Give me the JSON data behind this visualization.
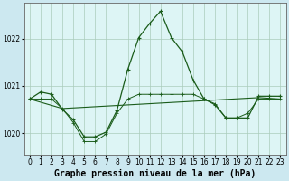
{
  "bg_color": "#cce8f0",
  "plot_bg_color": "#ddf5f5",
  "grid_color": "#aaccbb",
  "line_color": "#1a5c1a",
  "xlabel": "Graphe pression niveau de la mer (hPa)",
  "xlabel_fontsize": 7,
  "tick_fontsize": 5.5,
  "xlim": [
    -0.5,
    23.5
  ],
  "ylim": [
    1019.55,
    1022.75
  ],
  "yticks": [
    1020,
    1021,
    1022
  ],
  "xticks": [
    0,
    1,
    2,
    3,
    4,
    5,
    6,
    7,
    8,
    9,
    10,
    11,
    12,
    13,
    14,
    15,
    16,
    17,
    18,
    19,
    20,
    21,
    22,
    23
  ],
  "series1_x": [
    0,
    1,
    2,
    3,
    4,
    5,
    6,
    7,
    8,
    9,
    10,
    11,
    12,
    13,
    14,
    15,
    16,
    17,
    18,
    19,
    20,
    21,
    22,
    23
  ],
  "series1_y": [
    1020.72,
    1020.87,
    1020.82,
    1020.5,
    1020.28,
    1019.92,
    1019.92,
    1020.02,
    1020.48,
    1021.35,
    1022.02,
    1022.32,
    1022.58,
    1022.02,
    1021.72,
    1021.12,
    1020.72,
    1020.6,
    1020.32,
    1020.32,
    1020.32,
    1020.78,
    1020.78,
    1020.78
  ],
  "series2_x": [
    0,
    1,
    2,
    3,
    4,
    5,
    6,
    7,
    8,
    9,
    10,
    11,
    12,
    13,
    14,
    15,
    16,
    17,
    18,
    19,
    20,
    21,
    22,
    23
  ],
  "series2_y": [
    1020.72,
    1020.72,
    1020.72,
    1020.52,
    1020.22,
    1019.82,
    1019.82,
    1019.98,
    1020.42,
    1020.72,
    1020.82,
    1020.82,
    1020.82,
    1020.82,
    1020.82,
    1020.82,
    1020.72,
    1020.62,
    1020.32,
    1020.32,
    1020.42,
    1020.72,
    1020.72,
    1020.72
  ],
  "series3_x": [
    0,
    3,
    21,
    23
  ],
  "series3_y": [
    1020.72,
    1020.52,
    1020.75,
    1020.72
  ]
}
